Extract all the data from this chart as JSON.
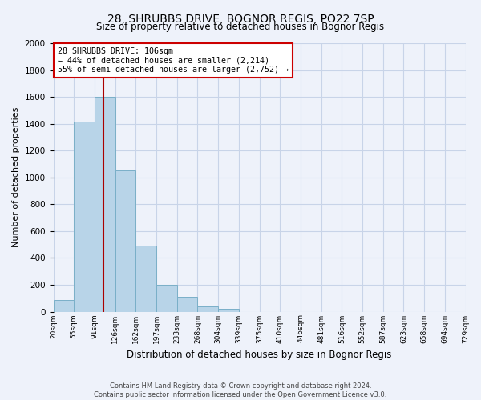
{
  "title": "28, SHRUBBS DRIVE, BOGNOR REGIS, PO22 7SP",
  "subtitle": "Size of property relative to detached houses in Bognor Regis",
  "xlabel": "Distribution of detached houses by size in Bognor Regis",
  "ylabel": "Number of detached properties",
  "bar_values": [
    85,
    1415,
    1600,
    1050,
    490,
    200,
    110,
    40,
    20,
    0,
    0,
    0,
    0,
    0,
    0,
    0,
    0,
    0,
    0,
    0
  ],
  "bin_labels": [
    "20sqm",
    "55sqm",
    "91sqm",
    "126sqm",
    "162sqm",
    "197sqm",
    "233sqm",
    "268sqm",
    "304sqm",
    "339sqm",
    "375sqm",
    "410sqm",
    "446sqm",
    "481sqm",
    "516sqm",
    "552sqm",
    "587sqm",
    "623sqm",
    "658sqm",
    "694sqm",
    "729sqm"
  ],
  "bar_color": "#b8d4e8",
  "bar_edge_color": "#7aafc8",
  "marker_label": "28 SHRUBBS DRIVE: 106sqm",
  "pct_smaller_label": "← 44% of detached houses are smaller (2,214)",
  "pct_larger_label": "55% of semi-detached houses are larger (2,752) →",
  "annotation_box_color": "#ffffff",
  "annotation_box_edge": "#cc0000",
  "marker_line_color": "#aa0000",
  "ylim": [
    0,
    2000
  ],
  "yticks": [
    0,
    200,
    400,
    600,
    800,
    1000,
    1200,
    1400,
    1600,
    1800,
    2000
  ],
  "grid_color": "#c8d4e8",
  "footer1": "Contains HM Land Registry data © Crown copyright and database right 2024.",
  "footer2": "Contains public sector information licensed under the Open Government Licence v3.0.",
  "background_color": "#eef2fa",
  "plot_bg_color": "#eef2fa"
}
